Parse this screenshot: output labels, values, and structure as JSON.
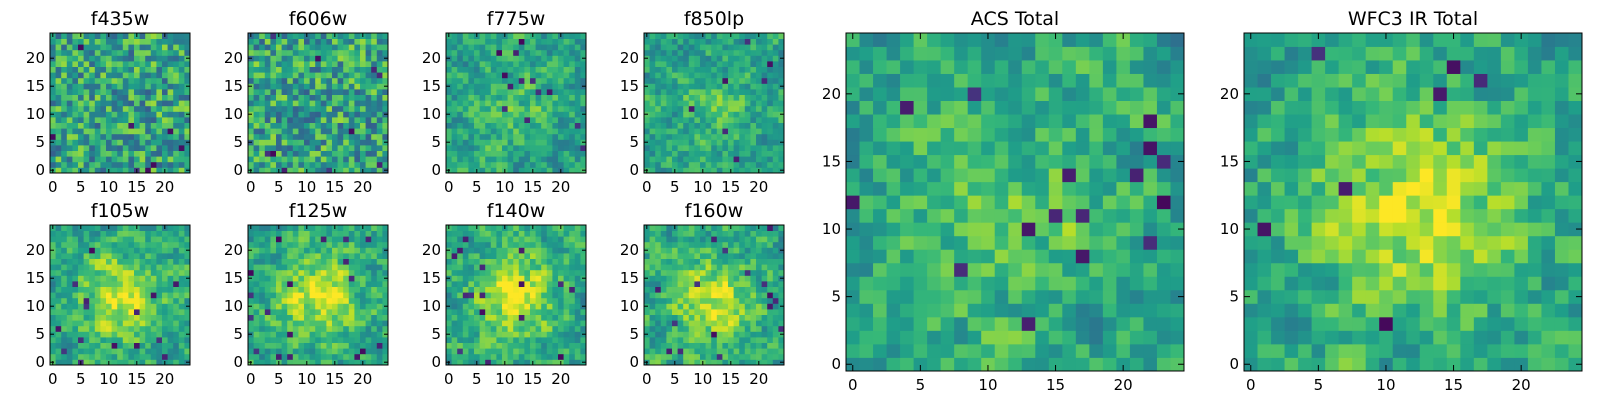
{
  "chart_data": [
    {
      "type": "heatmap",
      "title": "f435w",
      "x_ticks": [
        "0",
        "5",
        "10",
        "15",
        "20"
      ],
      "y_ticks": [
        "0",
        "5",
        "10",
        "15",
        "20"
      ],
      "xlim": [
        -0.5,
        24.5
      ],
      "ylim": [
        -0.5,
        24.5
      ],
      "grid_size": 25,
      "colormap": "viridis",
      "pattern": "noise"
    },
    {
      "type": "heatmap",
      "title": "f606w",
      "x_ticks": [
        "0",
        "5",
        "10",
        "15",
        "20"
      ],
      "y_ticks": [
        "0",
        "5",
        "10",
        "15",
        "20"
      ],
      "xlim": [
        -0.5,
        24.5
      ],
      "ylim": [
        -0.5,
        24.5
      ],
      "grid_size": 25,
      "colormap": "viridis",
      "pattern": "noise"
    },
    {
      "type": "heatmap",
      "title": "f775w",
      "x_ticks": [
        "0",
        "5",
        "10",
        "15",
        "20"
      ],
      "y_ticks": [
        "0",
        "5",
        "10",
        "15",
        "20"
      ],
      "xlim": [
        -0.5,
        24.5
      ],
      "ylim": [
        -0.5,
        24.5
      ],
      "grid_size": 25,
      "colormap": "viridis",
      "pattern": "noise_with_faint_center"
    },
    {
      "type": "heatmap",
      "title": "f850lp",
      "x_ticks": [
        "0",
        "5",
        "10",
        "15",
        "20"
      ],
      "y_ticks": [
        "0",
        "5",
        "10",
        "15",
        "20"
      ],
      "xlim": [
        -0.5,
        24.5
      ],
      "ylim": [
        -0.5,
        24.5
      ],
      "grid_size": 25,
      "colormap": "viridis",
      "pattern": "noise_with_faint_center"
    },
    {
      "type": "heatmap",
      "title": "f105w",
      "x_ticks": [
        "0",
        "5",
        "10",
        "15",
        "20"
      ],
      "y_ticks": [
        "0",
        "5",
        "10",
        "15",
        "20"
      ],
      "xlim": [
        -0.5,
        24.5
      ],
      "ylim": [
        -0.5,
        24.5
      ],
      "grid_size": 25,
      "colormap": "viridis",
      "pattern": "central_source"
    },
    {
      "type": "heatmap",
      "title": "f125w",
      "x_ticks": [
        "0",
        "5",
        "10",
        "15",
        "20"
      ],
      "y_ticks": [
        "0",
        "5",
        "10",
        "15",
        "20"
      ],
      "xlim": [
        -0.5,
        24.5
      ],
      "ylim": [
        -0.5,
        24.5
      ],
      "grid_size": 25,
      "colormap": "viridis",
      "pattern": "central_source"
    },
    {
      "type": "heatmap",
      "title": "f140w",
      "x_ticks": [
        "0",
        "5",
        "10",
        "15",
        "20"
      ],
      "y_ticks": [
        "0",
        "5",
        "10",
        "15",
        "20"
      ],
      "xlim": [
        -0.5,
        24.5
      ],
      "ylim": [
        -0.5,
        24.5
      ],
      "grid_size": 25,
      "colormap": "viridis",
      "pattern": "central_source"
    },
    {
      "type": "heatmap",
      "title": "f160w",
      "x_ticks": [
        "0",
        "5",
        "10",
        "15",
        "20"
      ],
      "y_ticks": [
        "0",
        "5",
        "10",
        "15",
        "20"
      ],
      "xlim": [
        -0.5,
        24.5
      ],
      "ylim": [
        -0.5,
        24.5
      ],
      "grid_size": 25,
      "colormap": "viridis",
      "pattern": "central_source"
    },
    {
      "type": "heatmap",
      "title": "ACS Total",
      "x_ticks": [
        "0",
        "5",
        "10",
        "15",
        "20"
      ],
      "y_ticks": [
        "0",
        "5",
        "10",
        "15",
        "20"
      ],
      "xlim": [
        -0.5,
        24.5
      ],
      "ylim": [
        -0.5,
        24.5
      ],
      "grid_size": 25,
      "colormap": "viridis",
      "pattern": "noise_with_center"
    },
    {
      "type": "heatmap",
      "title": "WFC3 IR Total",
      "x_ticks": [
        "0",
        "5",
        "10",
        "15",
        "20"
      ],
      "y_ticks": [
        "0",
        "5",
        "10",
        "15",
        "20"
      ],
      "xlim": [
        -0.5,
        24.5
      ],
      "ylim": [
        -0.5,
        24.5
      ],
      "grid_size": 25,
      "colormap": "viridis",
      "pattern": "central_source"
    }
  ]
}
